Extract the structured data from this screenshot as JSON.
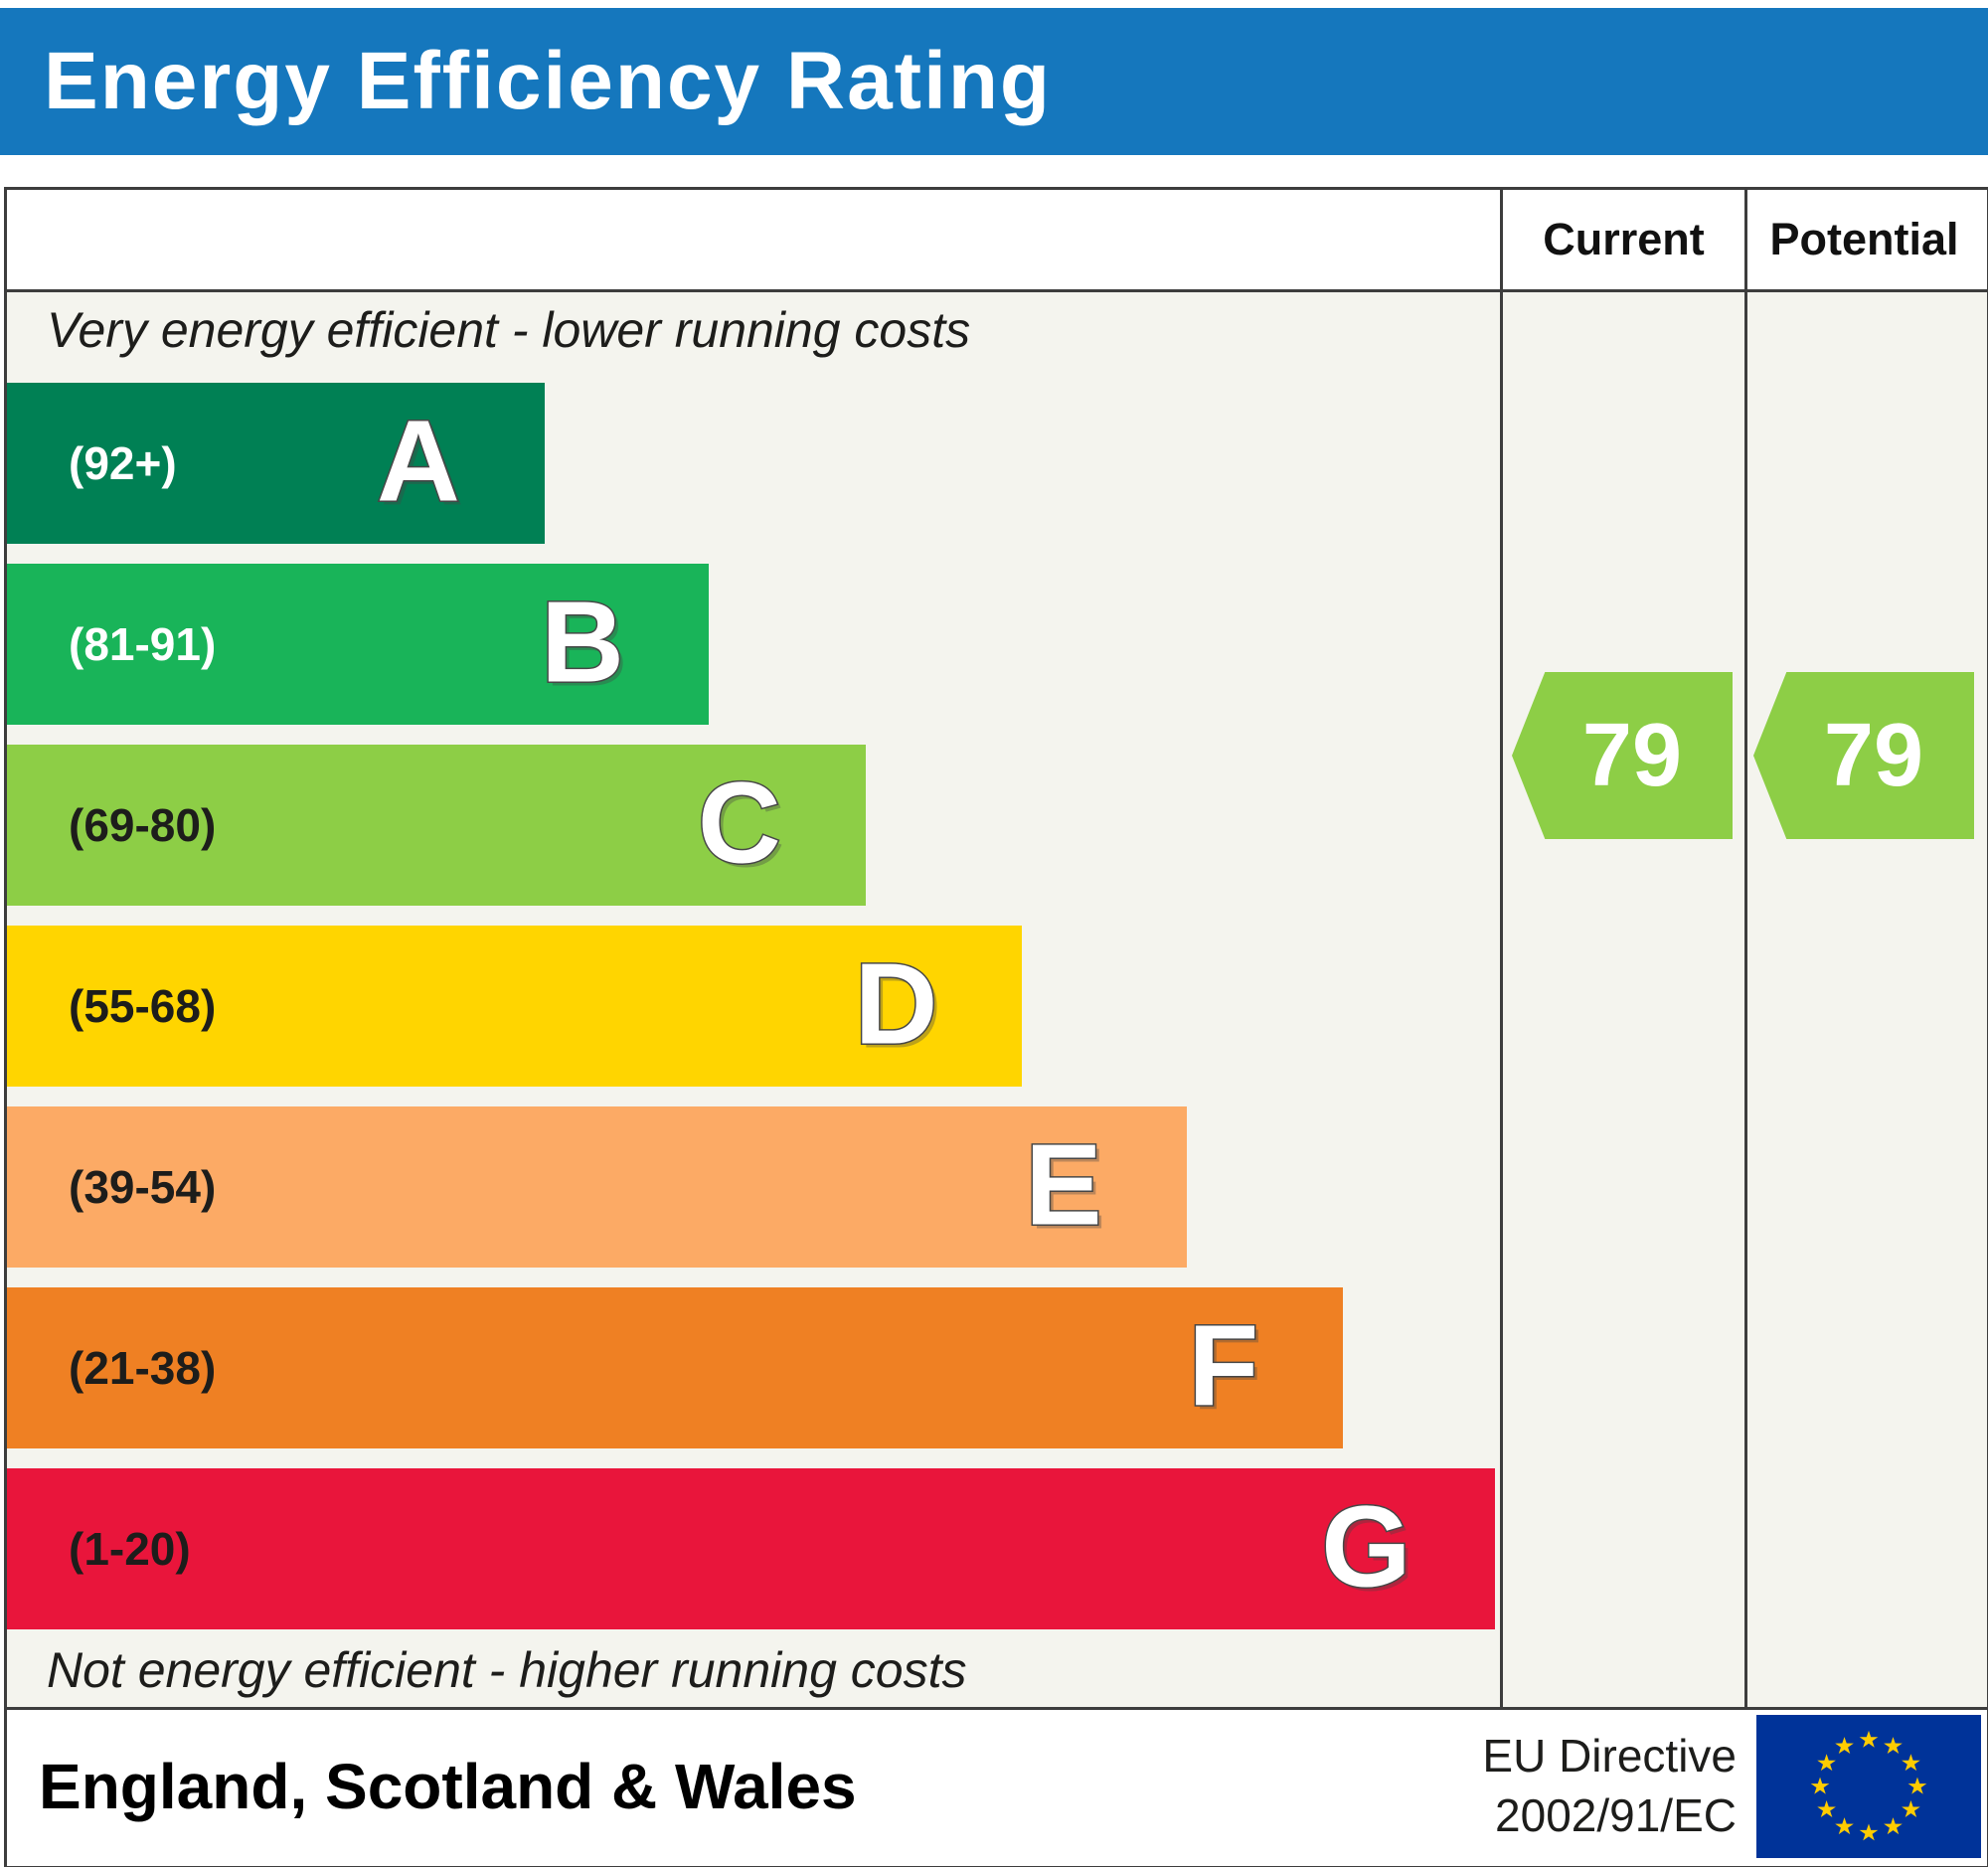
{
  "header": {
    "title": "Energy Efficiency Rating",
    "background": "#1577bd"
  },
  "columns": {
    "current": "Current",
    "potential": "Potential"
  },
  "notes": {
    "top": "Very energy efficient - lower running costs",
    "bottom": "Not energy efficient - higher running costs"
  },
  "ratings": {
    "current": "79",
    "potential": "79"
  },
  "footer": {
    "region": "England, Scotland & Wales",
    "directive_line1": "EU Directive",
    "directive_line2": "2002/91/EC",
    "eu_flag": {
      "background": "#003399",
      "star_color": "#ffcc00"
    }
  },
  "chart_data": {
    "type": "bar",
    "title": "Energy Efficiency Rating",
    "current": 79,
    "potential": 79,
    "current_band": "C",
    "potential_band": "C",
    "pointer_color": "#8dce46",
    "bands": [
      {
        "letter": "A",
        "range": "(92+)",
        "min": 92,
        "max": 100,
        "color": "#008054",
        "label_color": "#ffffff",
        "width_pct": 36
      },
      {
        "letter": "B",
        "range": "(81-91)",
        "min": 81,
        "max": 91,
        "color": "#19b459",
        "label_color": "#ffffff",
        "width_pct": 47
      },
      {
        "letter": "C",
        "range": "(69-80)",
        "min": 69,
        "max": 80,
        "color": "#8dce46",
        "label_color": "#1d1d1b",
        "width_pct": 57.5
      },
      {
        "letter": "D",
        "range": "(55-68)",
        "min": 55,
        "max": 68,
        "color": "#ffd500",
        "label_color": "#1d1d1b",
        "width_pct": 68
      },
      {
        "letter": "E",
        "range": "(39-54)",
        "min": 39,
        "max": 54,
        "color": "#fcaa65",
        "label_color": "#1d1d1b",
        "width_pct": 79
      },
      {
        "letter": "F",
        "range": "(21-38)",
        "min": 21,
        "max": 38,
        "color": "#ef8023",
        "label_color": "#1d1d1b",
        "width_pct": 89.5
      },
      {
        "letter": "G",
        "range": "(1-20)",
        "min": 1,
        "max": 20,
        "color": "#e9153b",
        "label_color": "#1d1d1b",
        "width_pct": 99.7
      }
    ]
  }
}
